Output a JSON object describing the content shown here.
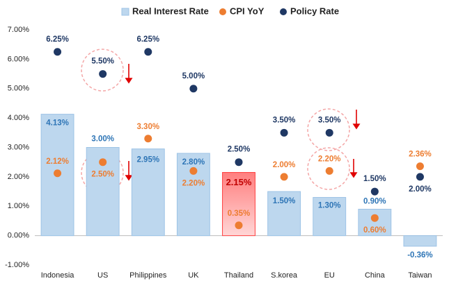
{
  "chart_data": {
    "type": "bar",
    "categories": [
      "Indonesia",
      "US",
      "Philippines",
      "UK",
      "Thailand",
      "S.korea",
      "EU",
      "China",
      "Taiwan"
    ],
    "series": [
      {
        "name": "Real Interest Rate",
        "type": "bar",
        "color": "#bdd7ee",
        "colors": [
          "#bdd7ee",
          "#bdd7ee",
          "#bdd7ee",
          "#bdd7ee",
          "#ff9f9f",
          "#bdd7ee",
          "#bdd7ee",
          "#bdd7ee",
          "#bdd7ee"
        ],
        "values": [
          4.13,
          3.0,
          2.95,
          2.8,
          2.15,
          1.5,
          1.3,
          0.9,
          -0.36
        ],
        "value_labels": [
          "4.13%",
          "3.00%",
          "2.95%",
          "2.80%",
          "2.15%",
          "1.50%",
          "1.30%",
          "0.90%",
          "-0.36%"
        ]
      },
      {
        "name": "CPI YoY",
        "type": "scatter",
        "color": "#ed7d31",
        "values": [
          2.12,
          2.5,
          3.3,
          2.2,
          0.35,
          2.0,
          2.2,
          0.6,
          2.36
        ],
        "value_labels": [
          "2.12%",
          "2.50%",
          "3.30%",
          "2.20%",
          "0.35%",
          "2.00%",
          "2.20%",
          "0.60%",
          "2.36%"
        ]
      },
      {
        "name": "Policy Rate",
        "type": "scatter",
        "color": "#1f3864",
        "values": [
          6.25,
          5.5,
          6.25,
          5.0,
          2.5,
          3.5,
          3.5,
          1.5,
          2.0
        ],
        "value_labels": [
          "6.25%",
          "5.50%",
          "6.25%",
          "5.00%",
          "2.50%",
          "3.50%",
          "3.50%",
          "1.50%",
          "2.00%"
        ]
      }
    ],
    "ylim": [
      -1,
      7
    ],
    "yticks": [
      {
        "value": -1,
        "label": "-1.00%"
      },
      {
        "value": 0,
        "label": "0.00%"
      },
      {
        "value": 1,
        "label": "1.00%"
      },
      {
        "value": 2,
        "label": "2.00%"
      },
      {
        "value": 3,
        "label": "3.00%"
      },
      {
        "value": 4,
        "label": "4.00%"
      },
      {
        "value": 5,
        "label": "5.00%"
      },
      {
        "value": 6,
        "label": "6.00%"
      },
      {
        "value": 7,
        "label": "7.00%"
      }
    ],
    "grid": false,
    "legend": "top"
  }
}
